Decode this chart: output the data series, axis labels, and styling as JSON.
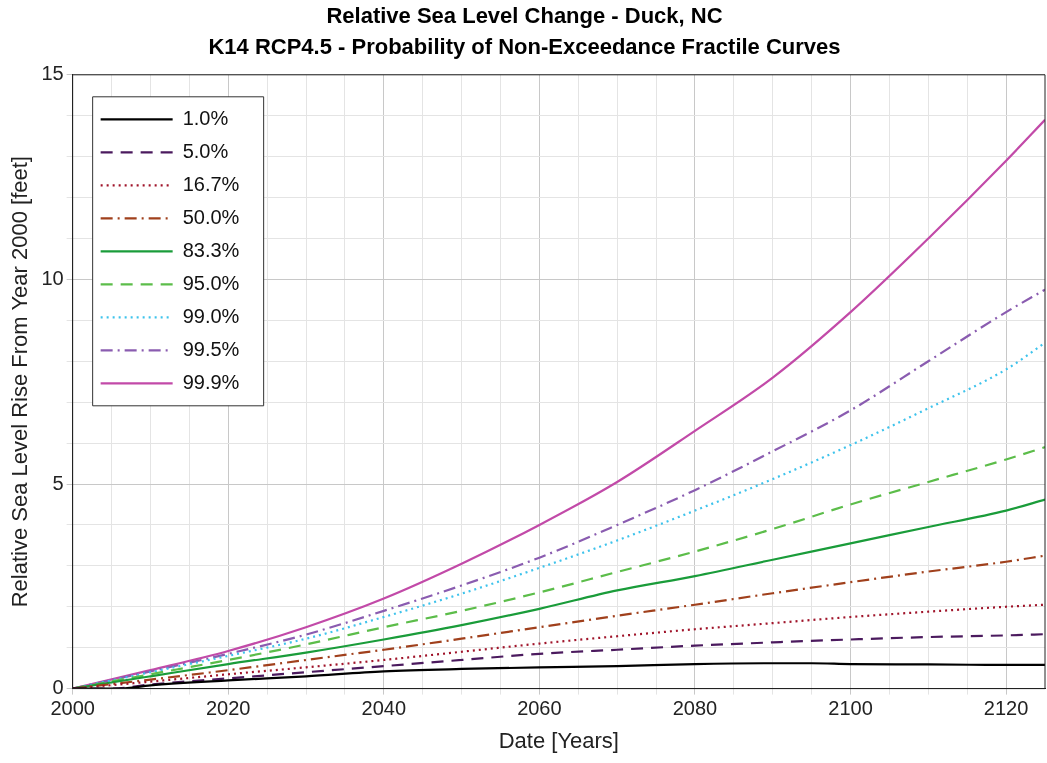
{
  "chart_data": {
    "type": "line",
    "title": "Relative Sea Level Change - Duck, NC",
    "subtitle": "K14 RCP4.5 - Probability of Non-Exceedance Fractile Curves",
    "xlabel": "Date [Years]",
    "ylabel": "Relative Sea Level Rise From Year 2000 [feet]",
    "xlim": [
      2000,
      2125
    ],
    "xticks": [
      2000,
      {
        "value": 2005,
        "label": null
      },
      {
        "value": 2010,
        "label": null
      },
      {
        "value": 2015,
        "label": null
      },
      2020,
      {
        "value": 2025,
        "label": null
      },
      {
        "value": 2030,
        "label": null
      },
      {
        "value": 2035,
        "label": null
      },
      2040,
      {
        "value": 2045,
        "label": null
      },
      {
        "value": 2050,
        "label": null
      },
      {
        "value": 2055,
        "label": null
      },
      2060,
      {
        "value": 2065,
        "label": null
      },
      {
        "value": 2070,
        "label": null
      },
      {
        "value": 2075,
        "label": null
      },
      2080,
      {
        "value": 2085,
        "label": null
      },
      {
        "value": 2090,
        "label": null
      },
      {
        "value": 2095,
        "label": null
      },
      2100,
      {
        "value": 2105,
        "label": null
      },
      {
        "value": 2110,
        "label": null
      },
      {
        "value": 2115,
        "label": null
      },
      2120
    ],
    "ylim": [
      0,
      15
    ],
    "yticks": [
      0,
      {
        "value": 1,
        "label": null
      },
      {
        "value": 2,
        "label": null
      },
      {
        "value": 3,
        "label": null
      },
      {
        "value": 4,
        "label": null
      },
      5,
      {
        "value": 6,
        "label": null
      },
      {
        "value": 7,
        "label": null
      },
      {
        "value": 8,
        "label": null
      },
      {
        "value": 9,
        "label": null
      },
      10,
      {
        "value": 11,
        "label": null
      },
      {
        "value": 12,
        "label": null
      },
      {
        "value": 13,
        "label": null
      },
      {
        "value": 14,
        "label": null
      },
      15
    ],
    "grid": true,
    "legend": "top left",
    "marker": "none",
    "series": [
      {
        "name": "1.0%",
        "color": "#000000",
        "line_style": "solid",
        "x": [
          2000,
          2006,
          2010,
          2020,
          2030,
          2040,
          2050,
          2060,
          2070,
          2080,
          2090,
          2095,
          2100,
          2110,
          2120,
          2125
        ],
        "values": [
          0,
          0,
          0.08,
          0.2,
          0.3,
          0.42,
          0.48,
          0.52,
          0.55,
          0.6,
          0.62,
          0.62,
          0.6,
          0.59,
          0.58,
          0.58
        ]
      },
      {
        "name": "5.0%",
        "color": "#4b1a5e",
        "line_style": "dashed",
        "x": [
          2000,
          2005,
          2010,
          2020,
          2030,
          2040,
          2050,
          2060,
          2070,
          2080,
          2090,
          2100,
          2110,
          2120,
          2125
        ],
        "values": [
          0,
          0,
          0.1,
          0.25,
          0.4,
          0.55,
          0.7,
          0.85,
          0.95,
          1.05,
          1.13,
          1.2,
          1.26,
          1.3,
          1.33
        ]
      },
      {
        "name": "16.7%",
        "color": "#a0142a",
        "line_style": "dotted",
        "x": [
          2000,
          2010,
          2020,
          2030,
          2040,
          2050,
          2060,
          2070,
          2080,
          2090,
          2100,
          2110,
          2120,
          2125
        ],
        "values": [
          0,
          0.17,
          0.35,
          0.52,
          0.7,
          0.9,
          1.1,
          1.28,
          1.45,
          1.6,
          1.75,
          1.88,
          2.0,
          2.05
        ]
      },
      {
        "name": "50.0%",
        "color": "#a0401c",
        "line_style": "dashdot",
        "x": [
          2000,
          2010,
          2020,
          2030,
          2040,
          2050,
          2060,
          2070,
          2080,
          2090,
          2100,
          2110,
          2120,
          2125
        ],
        "values": [
          0,
          0.22,
          0.45,
          0.7,
          0.95,
          1.22,
          1.5,
          1.78,
          2.05,
          2.33,
          2.6,
          2.86,
          3.1,
          3.25
        ]
      },
      {
        "name": "83.3%",
        "color": "#1a9c3a",
        "line_style": "solid",
        "x": [
          2000,
          2010,
          2020,
          2030,
          2040,
          2050,
          2060,
          2070,
          2080,
          2090,
          2100,
          2110,
          2120,
          2125
        ],
        "values": [
          0,
          0.3,
          0.6,
          0.88,
          1.2,
          1.55,
          1.95,
          2.4,
          2.75,
          3.15,
          3.55,
          3.95,
          4.35,
          4.62
        ]
      },
      {
        "name": "95.0%",
        "color": "#5cbd4a",
        "line_style": "dashed",
        "x": [
          2000,
          2010,
          2020,
          2030,
          2040,
          2050,
          2060,
          2070,
          2080,
          2090,
          2100,
          2110,
          2120,
          2125
        ],
        "values": [
          0,
          0.35,
          0.7,
          1.08,
          1.5,
          1.9,
          2.35,
          2.85,
          3.35,
          3.9,
          4.5,
          5.05,
          5.6,
          5.9
        ]
      },
      {
        "name": "99.0%",
        "color": "#3ec3ec",
        "line_style": "dotted",
        "x": [
          2000,
          2010,
          2020,
          2030,
          2040,
          2050,
          2060,
          2070,
          2080,
          2090,
          2100,
          2110,
          2120,
          2125
        ],
        "values": [
          0,
          0.4,
          0.8,
          1.22,
          1.75,
          2.32,
          2.95,
          3.62,
          4.35,
          5.12,
          5.95,
          6.85,
          7.8,
          8.45
        ]
      },
      {
        "name": "99.5%",
        "color": "#8a5cb0",
        "line_style": "dashdot",
        "x": [
          2000,
          2010,
          2020,
          2030,
          2040,
          2050,
          2060,
          2070,
          2080,
          2090,
          2100,
          2110,
          2120,
          2125
        ],
        "values": [
          0,
          0.42,
          0.85,
          1.32,
          1.9,
          2.52,
          3.2,
          4.0,
          4.85,
          5.8,
          6.8,
          8.0,
          9.2,
          9.75
        ]
      },
      {
        "name": "99.9%",
        "color": "#c24aa8",
        "line_style": "solid",
        "x": [
          2000,
          2010,
          2020,
          2030,
          2040,
          2050,
          2060,
          2070,
          2080,
          2090,
          2100,
          2110,
          2120,
          2125
        ],
        "values": [
          0,
          0.45,
          0.92,
          1.5,
          2.2,
          3.05,
          4.0,
          5.05,
          6.3,
          7.6,
          9.2,
          11.0,
          12.9,
          13.9
        ]
      }
    ]
  }
}
